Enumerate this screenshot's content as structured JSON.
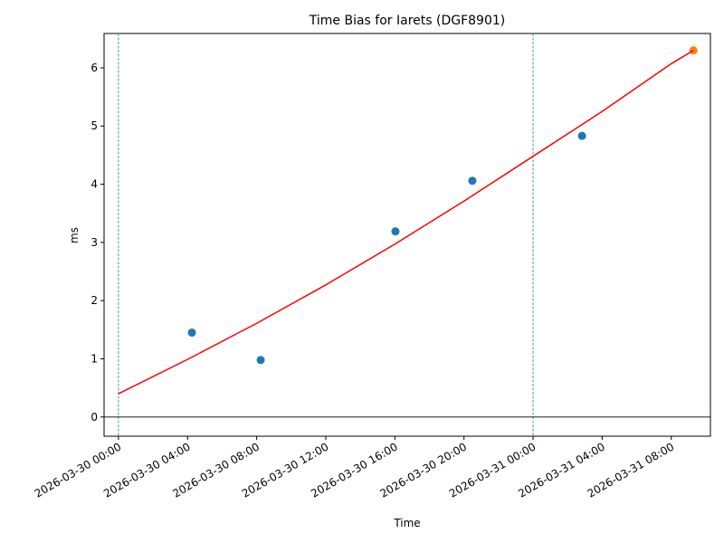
{
  "chart_data": {
    "type": "scatter",
    "title": "Time Bias for Iarets (DGF8901)",
    "x_label": "Time",
    "y_label": "ms",
    "xlim": [
      "2026-03-29 23:10",
      "2026-03-31 10:16"
    ],
    "xticks": [
      "2026-03-30 00:00",
      "2026-03-30 04:00",
      "2026-03-30 08:00",
      "2026-03-30 12:00",
      "2026-03-30 16:00",
      "2026-03-30 20:00",
      "2026-03-31 00:00",
      "2026-03-31 04:00",
      "2026-03-31 08:00"
    ],
    "ylim": [
      -0.33,
      6.59
    ],
    "yticks": [
      0,
      1,
      2,
      3,
      4,
      5,
      6
    ],
    "vlines": [
      "2026-03-30 00:00",
      "2026-03-31 00:00"
    ],
    "vline_color": "#1f77b4",
    "hline": 0,
    "hline_color": "#000000",
    "series": [
      {
        "mode": "points",
        "color": "#1f77b4",
        "x": [
          "2026-03-30 04:15",
          "2026-03-30 08:14",
          "2026-03-30 16:02",
          "2026-03-30 20:29",
          "2026-03-31 02:50"
        ],
        "values": [
          1.45,
          0.98,
          3.19,
          4.06,
          4.83
        ]
      },
      {
        "mode": "points",
        "color": "#ff7f0e",
        "x": [
          "2026-03-31 09:17"
        ],
        "values": [
          6.3
        ]
      },
      {
        "mode": "line",
        "color": "#ff0000",
        "x": [
          "2026-03-30 00:00",
          "2026-03-30 04:00",
          "2026-03-30 08:00",
          "2026-03-30 12:00",
          "2026-03-30 16:00",
          "2026-03-30 20:00",
          "2026-03-31 00:00",
          "2026-03-31 04:00",
          "2026-03-31 08:00",
          "2026-03-31 09:17"
        ],
        "values": [
          0.4,
          0.99,
          1.61,
          2.27,
          2.97,
          3.71,
          4.48,
          5.25,
          6.07,
          6.3
        ]
      }
    ]
  }
}
